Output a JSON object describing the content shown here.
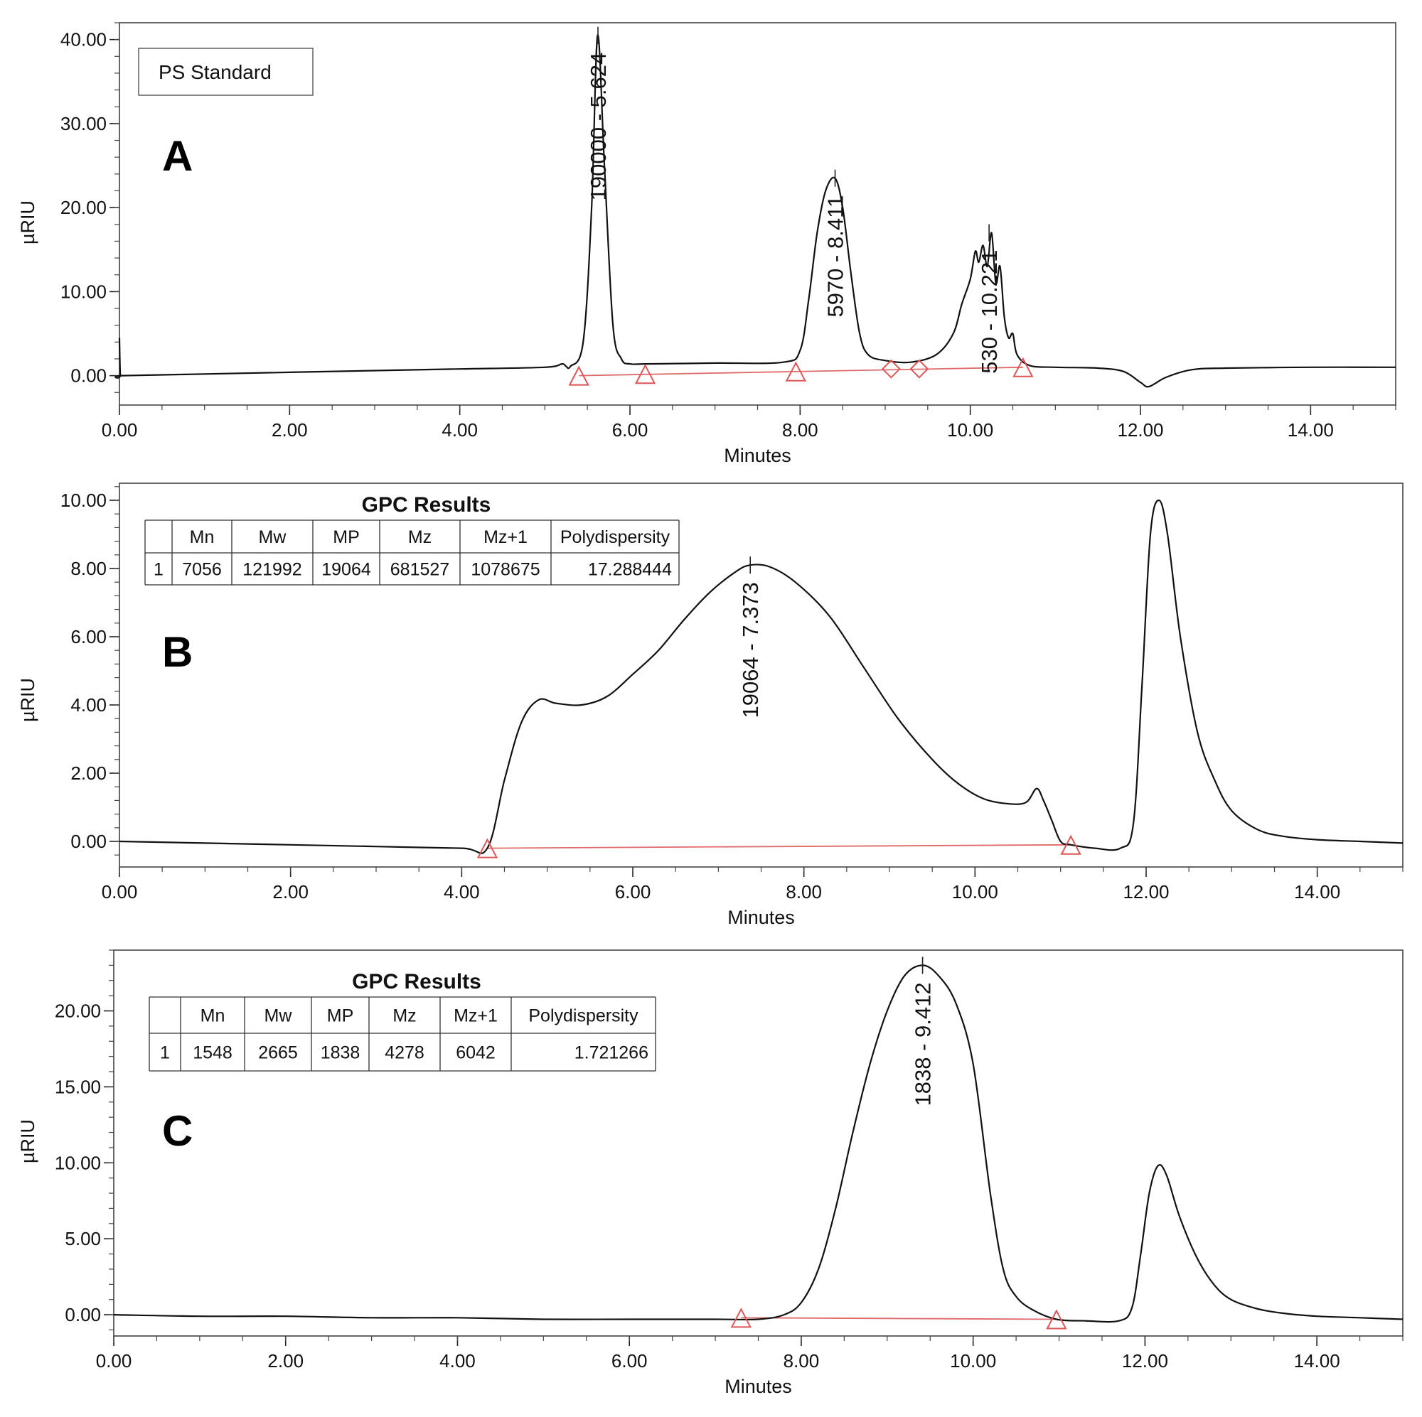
{
  "chart_data": [
    {
      "type": "line",
      "panel": "A",
      "legend": "PS Standard",
      "xlabel": "Minutes",
      "ylabel": "µRIU",
      "xlim": [
        0,
        15
      ],
      "ylim": [
        -3.5,
        42
      ],
      "xticks": [
        "0.00",
        "2.00",
        "4.00",
        "6.00",
        "8.00",
        "10.00",
        "12.00",
        "14.00"
      ],
      "yticks": [
        "0.00",
        "10.00",
        "20.00",
        "30.00",
        "40.00"
      ],
      "x": [
        0,
        0.01,
        0.03,
        1,
        2,
        3,
        4,
        5,
        5.2,
        5.25,
        5.3,
        5.45,
        5.55,
        5.62,
        5.7,
        5.8,
        5.9,
        6.0,
        6.2,
        7.0,
        7.8,
        8.0,
        8.1,
        8.2,
        8.3,
        8.41,
        8.5,
        8.6,
        8.7,
        8.8,
        9.0,
        9.3,
        9.6,
        9.8,
        9.9,
        10.0,
        10.06,
        10.1,
        10.15,
        10.2,
        10.25,
        10.3,
        10.35,
        10.4,
        10.45,
        10.5,
        10.55,
        10.7,
        11.0,
        11.5,
        11.8,
        12.0,
        12.1,
        12.3,
        12.6,
        13.0,
        14.0,
        15.0
      ],
      "y": [
        4.5,
        0.1,
        0.0,
        0.2,
        0.4,
        0.6,
        0.8,
        1.0,
        1.4,
        1.1,
        1.1,
        4.0,
        20.0,
        40.5,
        25.0,
        6.0,
        2.0,
        1.4,
        1.4,
        1.5,
        1.6,
        3.0,
        9.0,
        17.0,
        22.0,
        23.5,
        20.0,
        12.0,
        5.0,
        2.5,
        1.8,
        1.6,
        2.5,
        5.0,
        8.5,
        11.5,
        14.8,
        13.5,
        15.5,
        13.0,
        17.0,
        11.0,
        13.0,
        7.0,
        4.5,
        5.0,
        2.5,
        1.2,
        1.0,
        0.9,
        0.5,
        -0.8,
        -1.3,
        -0.2,
        0.7,
        0.9,
        1.0,
        1.0
      ],
      "baseline": [
        [
          5.4,
          0.0
        ],
        [
          10.62,
          1.0
        ]
      ],
      "markers": [
        {
          "shape": "triangle",
          "x": 5.4,
          "y": 0.0
        },
        {
          "shape": "triangle",
          "x": 6.18,
          "y": 0.2
        },
        {
          "shape": "triangle",
          "x": 7.95,
          "y": 0.5
        },
        {
          "shape": "diamond",
          "x": 9.07,
          "y": 0.8
        },
        {
          "shape": "diamond",
          "x": 9.4,
          "y": 0.8
        },
        {
          "shape": "triangle",
          "x": 10.62,
          "y": 1.0
        }
      ],
      "peak_labels": [
        {
          "text": "190000 - 5.624",
          "x": 5.624,
          "y": 40.5
        },
        {
          "text": "5970 - 8.411",
          "x": 8.411,
          "y": 23.5
        },
        {
          "text": "530 - 10.221",
          "x": 10.221,
          "y": 17.0
        }
      ]
    },
    {
      "type": "line",
      "panel": "B",
      "xlabel": "Minutes",
      "ylabel": "µRIU",
      "xlim": [
        0,
        15
      ],
      "ylim": [
        -0.75,
        10.5
      ],
      "xticks": [
        "0.00",
        "2.00",
        "4.00",
        "6.00",
        "8.00",
        "10.00",
        "12.00",
        "14.00"
      ],
      "yticks": [
        "0.00",
        "2.00",
        "4.00",
        "6.00",
        "8.00",
        "10.00"
      ],
      "x": [
        0,
        1,
        2,
        3,
        4,
        4.3,
        4.5,
        4.7,
        4.9,
        5.1,
        5.4,
        5.7,
        6.0,
        6.3,
        6.6,
        6.9,
        7.2,
        7.373,
        7.6,
        7.9,
        8.3,
        8.7,
        9.1,
        9.5,
        9.8,
        10.1,
        10.4,
        10.6,
        10.72,
        10.8,
        10.9,
        11.0,
        11.12,
        11.4,
        11.7,
        11.85,
        11.95,
        12.05,
        12.15,
        12.25,
        12.4,
        12.6,
        12.8,
        13.0,
        13.3,
        13.6,
        14.0,
        14.5,
        15.0
      ],
      "y": [
        0.0,
        -0.05,
        -0.1,
        -0.15,
        -0.2,
        -0.2,
        1.8,
        3.5,
        4.15,
        4.05,
        4.0,
        4.25,
        4.9,
        5.6,
        6.5,
        7.3,
        7.9,
        8.1,
        8.05,
        7.6,
        6.6,
        5.1,
        3.6,
        2.4,
        1.7,
        1.25,
        1.1,
        1.15,
        1.55,
        1.2,
        0.6,
        0.0,
        -0.1,
        -0.2,
        -0.2,
        0.5,
        4.5,
        9.0,
        10.0,
        9.0,
        6.0,
        3.2,
        1.8,
        0.9,
        0.35,
        0.15,
        0.05,
        0.0,
        -0.05
      ],
      "baseline": [
        [
          4.3,
          -0.2
        ],
        [
          11.12,
          -0.1
        ]
      ],
      "markers": [
        {
          "shape": "triangle",
          "x": 4.3,
          "y": -0.2
        },
        {
          "shape": "triangle",
          "x": 11.12,
          "y": -0.1
        }
      ],
      "peak_labels": [
        {
          "text": "19064 - 7.373",
          "x": 7.373,
          "y": 8.1
        }
      ],
      "results_table": {
        "title": "GPC Results",
        "headers": [
          "",
          "Mn",
          "Mw",
          "MP",
          "Mz",
          "Mz+1",
          "Polydispersity"
        ],
        "rows": [
          [
            "1",
            "7056",
            "121992",
            "19064",
            "681527",
            "1078675",
            "17.288444"
          ]
        ]
      }
    },
    {
      "type": "line",
      "panel": "C",
      "xlabel": "Minutes",
      "ylabel": "µRIU",
      "xlim": [
        0,
        15
      ],
      "ylim": [
        -1.4,
        24
      ],
      "xticks": [
        "0.00",
        "2.00",
        "4.00",
        "6.00",
        "8.00",
        "10.00",
        "12.00",
        "14.00"
      ],
      "yticks": [
        "0.00",
        "5.00",
        "10.00",
        "15.00",
        "20.00"
      ],
      "x": [
        0,
        1,
        2,
        3,
        4,
        5,
        6,
        7,
        7.5,
        7.8,
        8.0,
        8.2,
        8.4,
        8.6,
        8.8,
        9.0,
        9.2,
        9.412,
        9.6,
        9.8,
        10.0,
        10.2,
        10.35,
        10.5,
        10.7,
        10.97,
        11.3,
        11.7,
        11.85,
        11.95,
        12.05,
        12.15,
        12.25,
        12.4,
        12.6,
        12.8,
        13.0,
        13.3,
        13.6,
        14.0,
        14.5,
        15.0
      ],
      "y": [
        0.0,
        -0.1,
        -0.1,
        -0.2,
        -0.2,
        -0.3,
        -0.3,
        -0.3,
        -0.3,
        0.0,
        0.8,
        3.0,
        7.0,
        12.0,
        16.5,
        20.0,
        22.3,
        23.0,
        22.3,
        20.5,
        16.5,
        8.0,
        3.0,
        1.2,
        0.3,
        -0.3,
        -0.4,
        -0.4,
        0.5,
        4.0,
        8.0,
        9.8,
        9.2,
        6.5,
        3.8,
        2.0,
        1.0,
        0.4,
        0.1,
        -0.1,
        -0.2,
        -0.3
      ],
      "baseline": [
        [
          7.3,
          -0.2
        ],
        [
          10.97,
          -0.3
        ]
      ],
      "markers": [
        {
          "shape": "triangle",
          "x": 7.3,
          "y": -0.2
        },
        {
          "shape": "triangle",
          "x": 10.97,
          "y": -0.3
        }
      ],
      "peak_labels": [
        {
          "text": "1838 - 9.412",
          "x": 9.412,
          "y": 23.0
        }
      ],
      "results_table": {
        "title": "GPC Results",
        "headers": [
          "",
          "Mn",
          "Mw",
          "MP",
          "Mz",
          "Mz+1",
          "Polydispersity"
        ],
        "rows": [
          [
            "1",
            "1548",
            "2665",
            "1838",
            "4278",
            "6042",
            "1.721266"
          ]
        ]
      }
    }
  ]
}
